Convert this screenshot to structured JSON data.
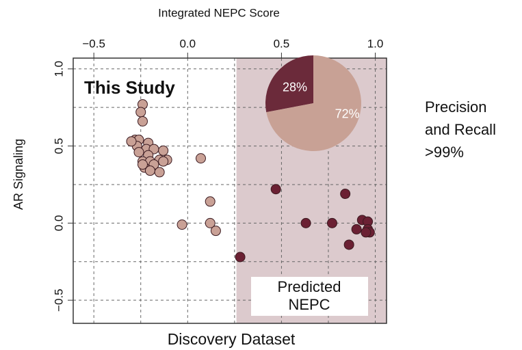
{
  "chart_data": {
    "type": "scatter",
    "title": "Integrated NEPC Score",
    "x_label": "Discovery Dataset",
    "y_label": "AR Signaling",
    "annotation": "This Study",
    "box_text": [
      "Predicted",
      "NEPC"
    ],
    "side_note": [
      "Precision",
      "and Recall",
      ">99%"
    ],
    "xlim": [
      -0.61,
      1.06
    ],
    "ylim": [
      -0.65,
      1.07
    ],
    "xticks": [
      {
        "value": -0.5,
        "label": "−0.5"
      },
      {
        "value": 0,
        "label": "0.0"
      },
      0.5,
      {
        "value": 1,
        "label": "1.0"
      }
    ],
    "yticks": [
      {
        "value": -0.5,
        "label": "−0.5"
      },
      {
        "value": 0,
        "label": "0.0"
      },
      0.5,
      {
        "value": 1,
        "label": "1.0"
      }
    ],
    "grid": true,
    "threshold": 0.26,
    "series": [
      {
        "color": "#c9a196",
        "x": [
          -0.24,
          -0.25,
          -0.24,
          -0.28,
          -0.26,
          -0.21,
          -0.22,
          -0.18,
          -0.13,
          -0.27,
          -0.3,
          -0.26,
          -0.21,
          -0.24,
          -0.2,
          -0.15,
          -0.11,
          -0.18,
          -0.23,
          -0.2,
          -0.15,
          -0.24,
          0.07,
          0.12,
          -0.03,
          0.12,
          0.15,
          -0.13
        ],
        "values": [
          0.77,
          0.72,
          0.66,
          0.54,
          0.54,
          0.52,
          0.48,
          0.48,
          0.47,
          0.5,
          0.53,
          0.46,
          0.44,
          0.4,
          0.4,
          0.41,
          0.41,
          0.38,
          0.36,
          0.34,
          0.33,
          0.38,
          0.42,
          0.14,
          -0.01,
          0.0,
          -0.05,
          0.4
        ]
      },
      {
        "color": "#6b2033",
        "x": [
          0.28,
          0.47,
          0.63,
          0.77,
          0.84,
          0.86,
          0.9,
          0.93,
          0.96,
          0.96,
          0.97,
          0.95
        ],
        "values": [
          -0.22,
          0.22,
          0.0,
          0.0,
          0.19,
          -0.14,
          -0.04,
          0.02,
          0.01,
          -0.04,
          -0.06,
          -0.06
        ]
      }
    ],
    "pie": {
      "values": [
        28,
        72
      ],
      "value_labels": [
        "28%",
        "72%"
      ],
      "colors": [
        "#6b2a3a",
        "#c8a195"
      ]
    }
  }
}
